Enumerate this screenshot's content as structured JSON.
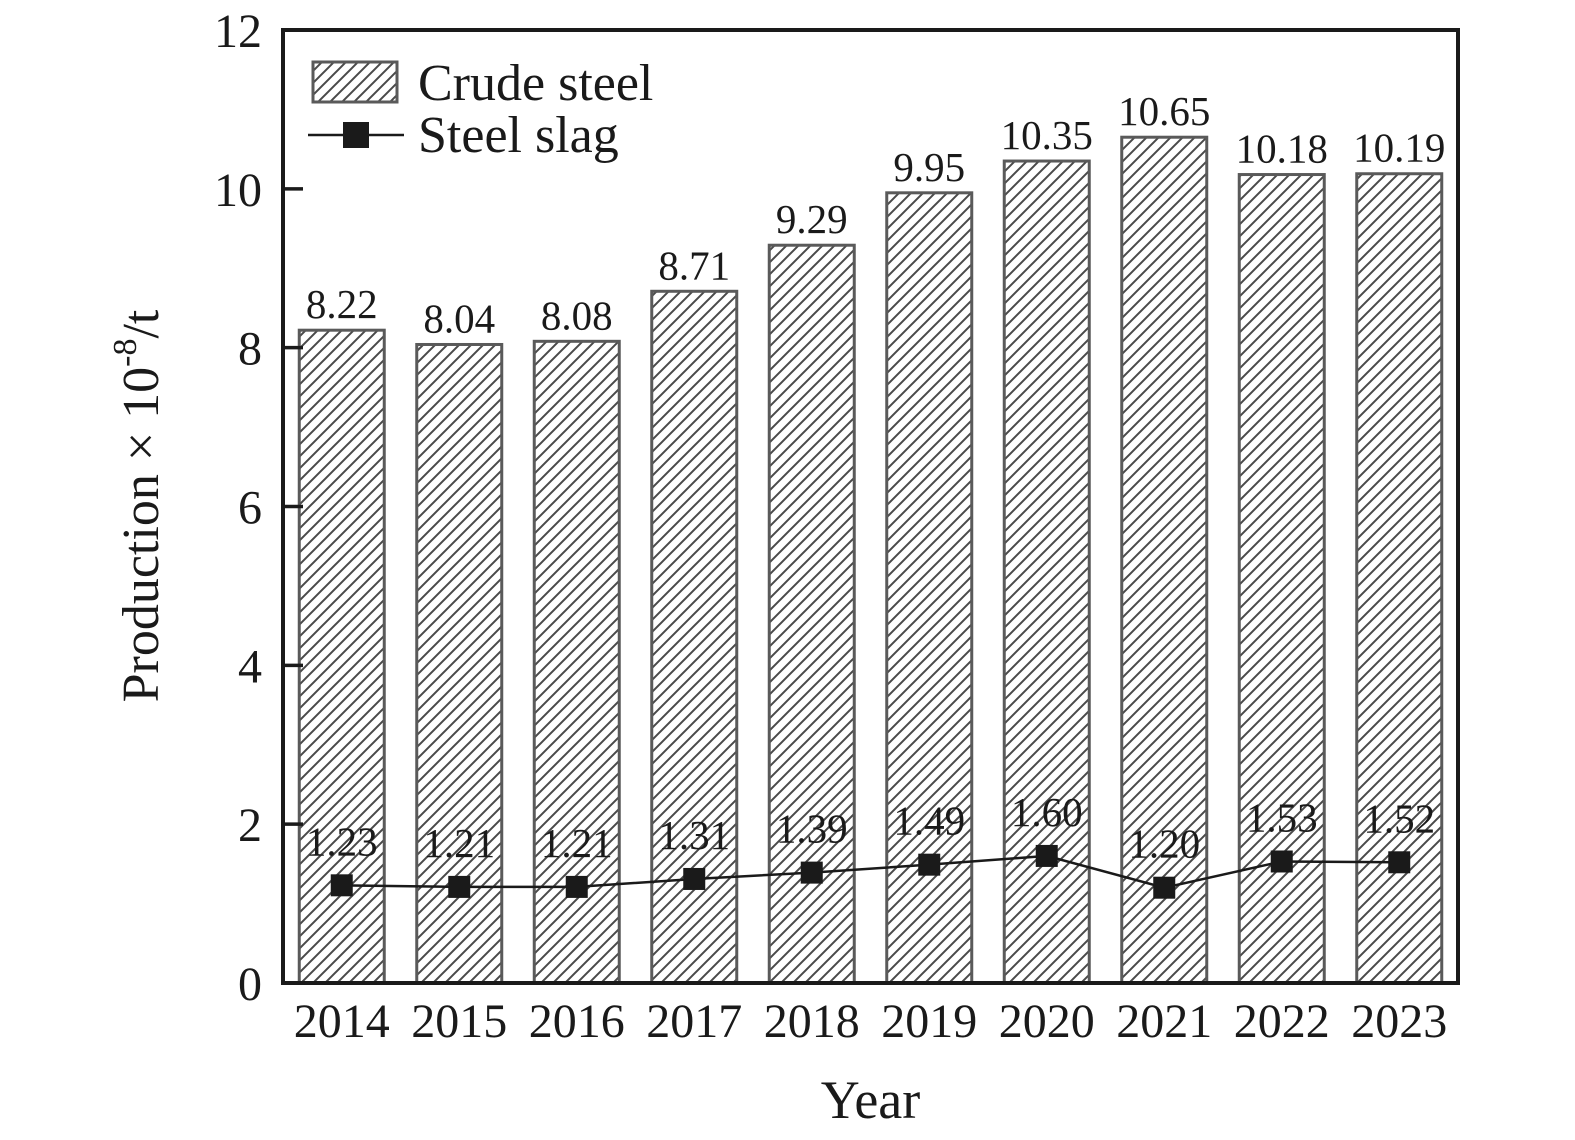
{
  "figure": {
    "background": "#ffffff",
    "text_color": "#1a1a1a",
    "axis_color": "#1a1a1a",
    "bar_fill": "#ffffff",
    "bar_outline_color": "#5a5a5a",
    "hatch_color": "#4a4a4a",
    "line_color": "#1a1a1a",
    "marker_color": "#1a1a1a"
  },
  "chart_data": {
    "type": "bar",
    "categories": [
      "2014",
      "2015",
      "2016",
      "2017",
      "2018",
      "2019",
      "2020",
      "2021",
      "2022",
      "2023"
    ],
    "series": [
      {
        "name": "Crude steel",
        "type": "bar",
        "style": "hatched",
        "values": [
          8.22,
          8.04,
          8.08,
          8.71,
          9.29,
          9.95,
          10.35,
          10.65,
          10.18,
          10.19
        ],
        "data_labels": [
          "8.22",
          "8.04",
          "8.08",
          "8.71",
          "9.29",
          "9.95",
          "10.35",
          "10.65",
          "10.18",
          "10.19"
        ]
      },
      {
        "name": "Steel slag",
        "type": "line",
        "marker": "square",
        "values": [
          1.23,
          1.21,
          1.21,
          1.31,
          1.39,
          1.49,
          1.6,
          1.2,
          1.53,
          1.52
        ],
        "data_labels": [
          "1.23",
          "1.21",
          "1.21",
          "1.31",
          "1.39",
          "1.49",
          "1.60",
          "1.20",
          "1.53",
          "1.52"
        ]
      }
    ],
    "xlabel": "Year",
    "ylabel": "Production × 10⁻⁸/t",
    "ylabel_parts": {
      "base": "Production × 10",
      "superscript": "-8",
      "suffix": "/t"
    },
    "ylim": [
      0,
      12
    ],
    "yticks": [
      "0",
      "2",
      "4",
      "6",
      "8",
      "10",
      "12"
    ],
    "legend_position": "top-left",
    "grid": false
  }
}
